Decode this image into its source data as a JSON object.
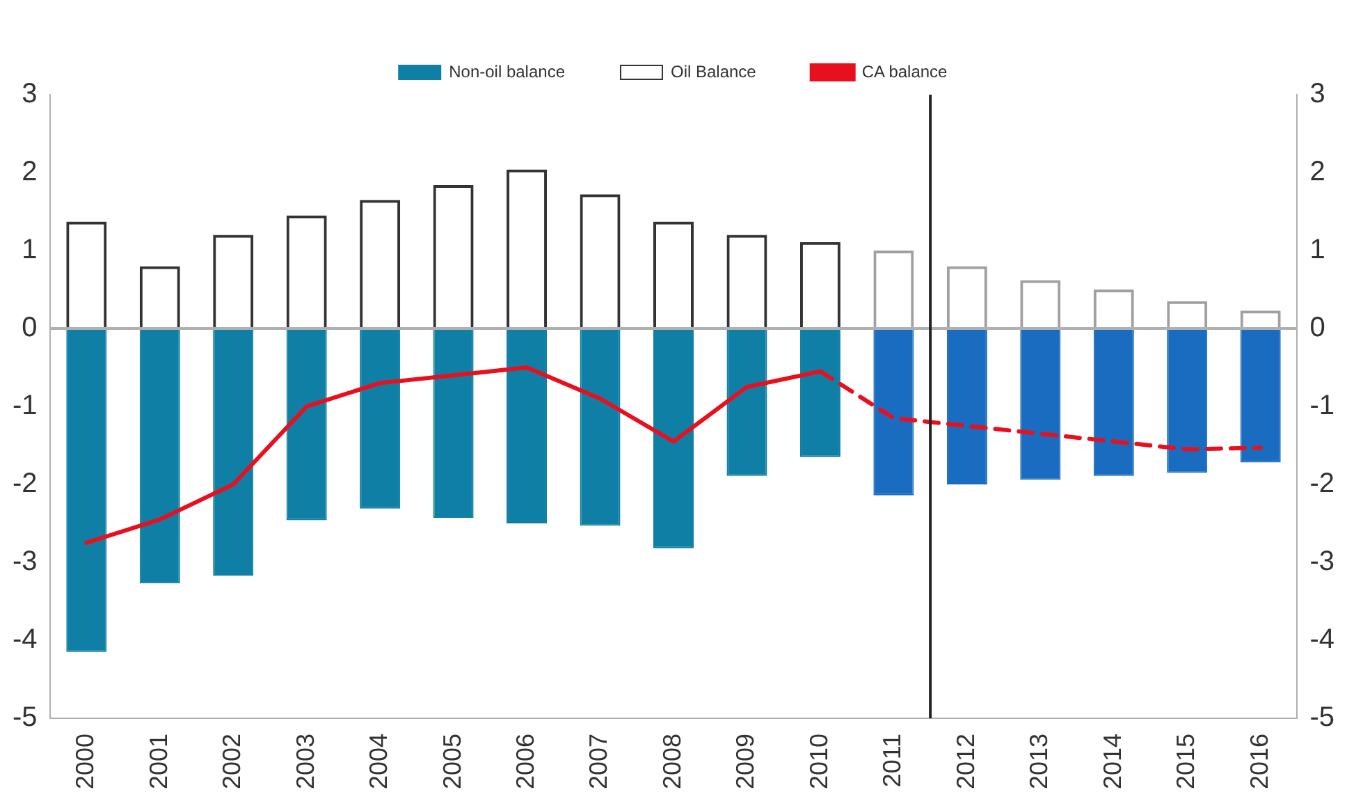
{
  "chart_data": {
    "type": "bar",
    "stacked": true,
    "categories": [
      "2000",
      "2001",
      "2002",
      "2003",
      "2004",
      "2005",
      "2006",
      "2007",
      "2008",
      "2009",
      "2010",
      "2011",
      "2012",
      "2013",
      "2014",
      "2015",
      "2016"
    ],
    "series": [
      {
        "name": "Non-oil balance",
        "color": "#0f7fa6",
        "colors": [
          "#0f7fa6",
          "#0f7fa6",
          "#0f7fa6",
          "#0f7fa6",
          "#0f7fa6",
          "#0f7fa6",
          "#0f7fa6",
          "#0f7fa6",
          "#0f7fa6",
          "#0f7fa6",
          "#0f7fa6",
          "#1a6cc0",
          "#1a6cc0",
          "#1a6cc0",
          "#1a6cc0",
          "#1a6cc0",
          "#1a6cc0"
        ],
        "values": [
          -4.15,
          -3.27,
          -3.17,
          -2.46,
          -2.31,
          -2.43,
          -2.5,
          -2.53,
          -2.82,
          -1.89,
          -1.65,
          -2.14,
          -2.0,
          -1.94,
          -1.89,
          -1.85,
          -1.72
        ]
      },
      {
        "name": "Oil Balance",
        "color": "#333333",
        "colors": [
          "#333333",
          "#333333",
          "#333333",
          "#333333",
          "#333333",
          "#333333",
          "#333333",
          "#333333",
          "#333333",
          "#333333",
          "#333333",
          "#a0a0a0",
          "#a0a0a0",
          "#a0a0a0",
          "#a0a0a0",
          "#a0a0a0",
          "#a0a0a0"
        ],
        "values": [
          1.37,
          0.8,
          1.2,
          1.45,
          1.65,
          1.84,
          2.04,
          1.72,
          1.37,
          1.2,
          1.11,
          1.0,
          0.8,
          0.62,
          0.5,
          0.35,
          0.23
        ]
      },
      {
        "name": "CA balance",
        "type": "line",
        "color": "#e8101e",
        "line_style": "solid",
        "values": [
          -2.75,
          -2.45,
          -2.0,
          -1.0,
          -0.7,
          -0.6,
          -0.5,
          -0.9,
          -1.45,
          -0.75,
          -0.55,
          null,
          null,
          null,
          null,
          null,
          null
        ]
      },
      {
        "type": "line",
        "color": "#e8101e",
        "line_style": "dashed",
        "values": [
          null,
          null,
          null,
          null,
          null,
          null,
          null,
          null,
          null,
          null,
          -0.55,
          -1.15,
          -1.25,
          -1.35,
          -1.45,
          -1.55,
          -1.53
        ]
      }
    ],
    "ylim": [
      -5,
      3
    ],
    "yticks": [
      -5,
      -4,
      -3,
      -2,
      -1,
      0,
      1,
      2,
      3
    ],
    "y2lim": [
      -5,
      3
    ],
    "y2ticks": [
      -5,
      -4,
      -3,
      -2,
      -1,
      0,
      1,
      2,
      3
    ],
    "ref_lines": [
      {
        "axis": "x",
        "value": "2011",
        "color": "#222222"
      }
    ],
    "legend": "top",
    "marker": "none"
  }
}
